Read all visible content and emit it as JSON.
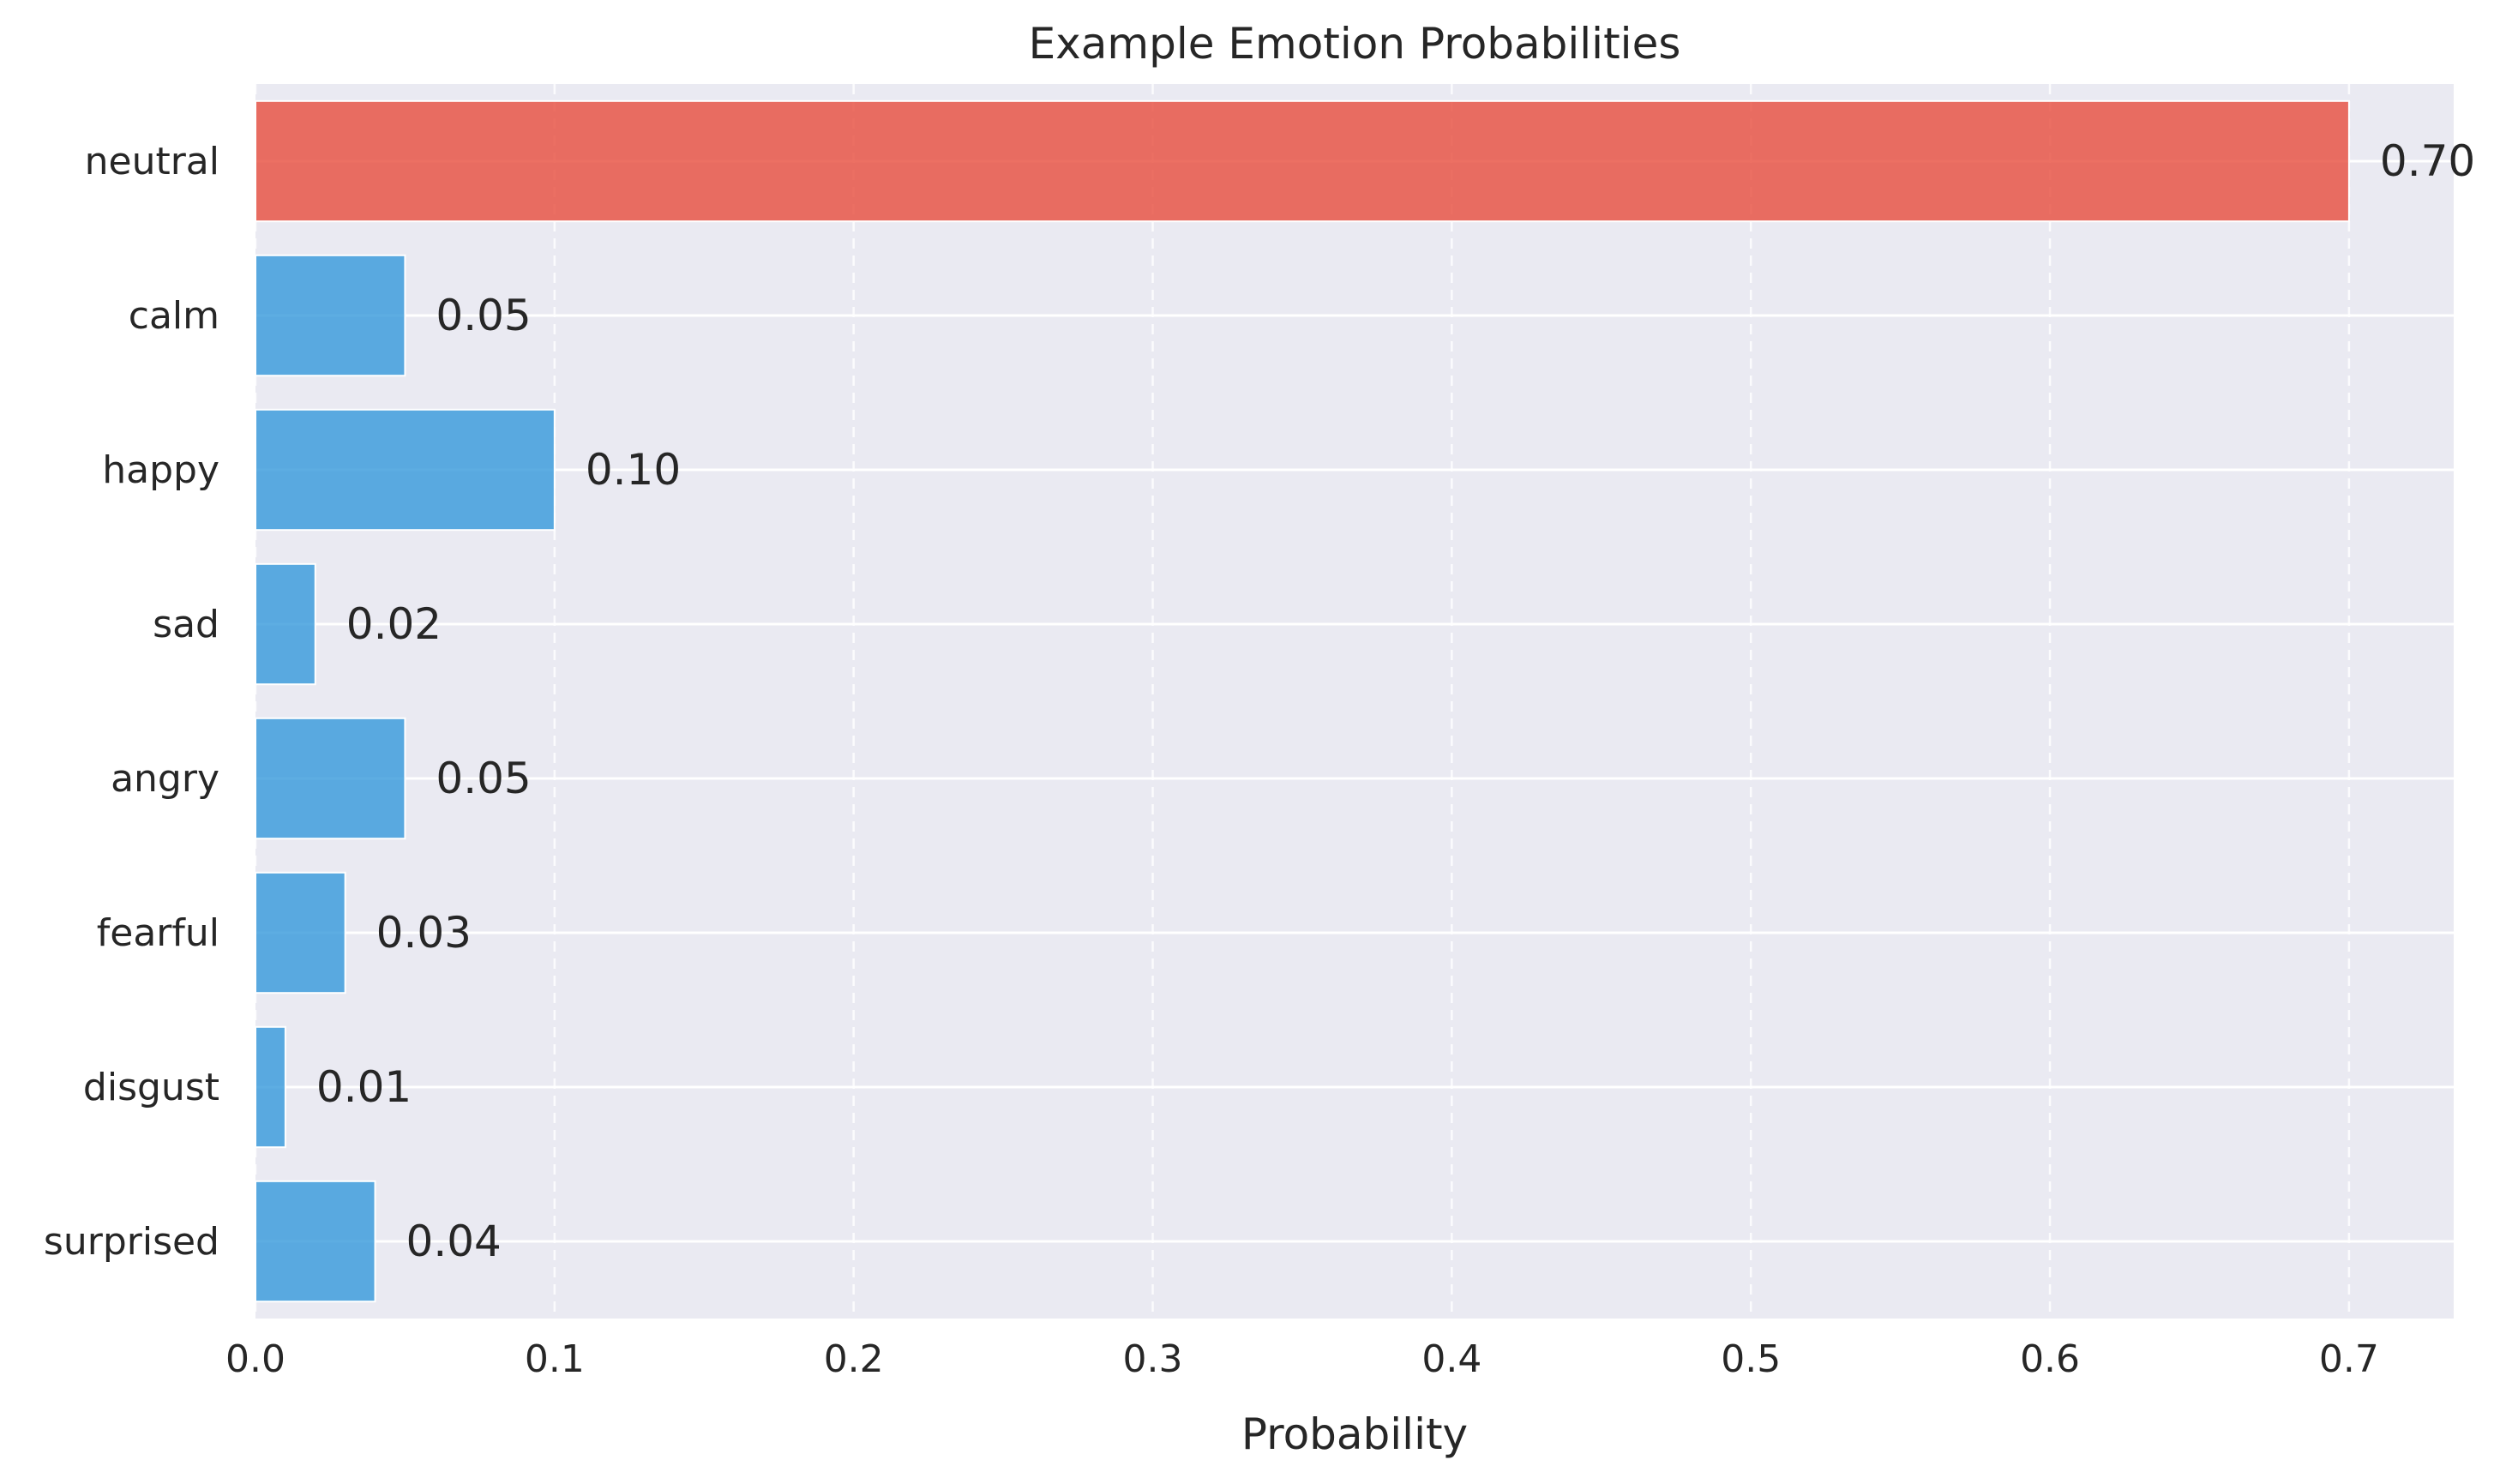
{
  "chart_data": {
    "type": "bar",
    "orientation": "horizontal",
    "title": "Example Emotion Probabilities",
    "xlabel": "Probability",
    "ylabel": "",
    "categories": [
      "neutral",
      "calm",
      "happy",
      "sad",
      "angry",
      "fearful",
      "disgust",
      "surprised"
    ],
    "values": [
      0.7,
      0.05,
      0.1,
      0.02,
      0.05,
      0.03,
      0.01,
      0.04
    ],
    "value_labels": [
      "0.70",
      "0.05",
      "0.10",
      "0.02",
      "0.05",
      "0.03",
      "0.01",
      "0.04"
    ],
    "xlim": [
      0.0,
      0.735
    ],
    "xticks": [
      0.0,
      0.1,
      0.2,
      0.3,
      0.4,
      0.5,
      0.6,
      0.7
    ],
    "xtick_labels": [
      "0.0",
      "0.1",
      "0.2",
      "0.3",
      "0.4",
      "0.5",
      "0.6",
      "0.7"
    ],
    "highlight_category": "neutral",
    "colors": {
      "highlight": "#e74c3c",
      "default": "#3498db",
      "background": "#eaeaf2",
      "grid": "#ffffff"
    },
    "grid": true,
    "legend": "none"
  }
}
